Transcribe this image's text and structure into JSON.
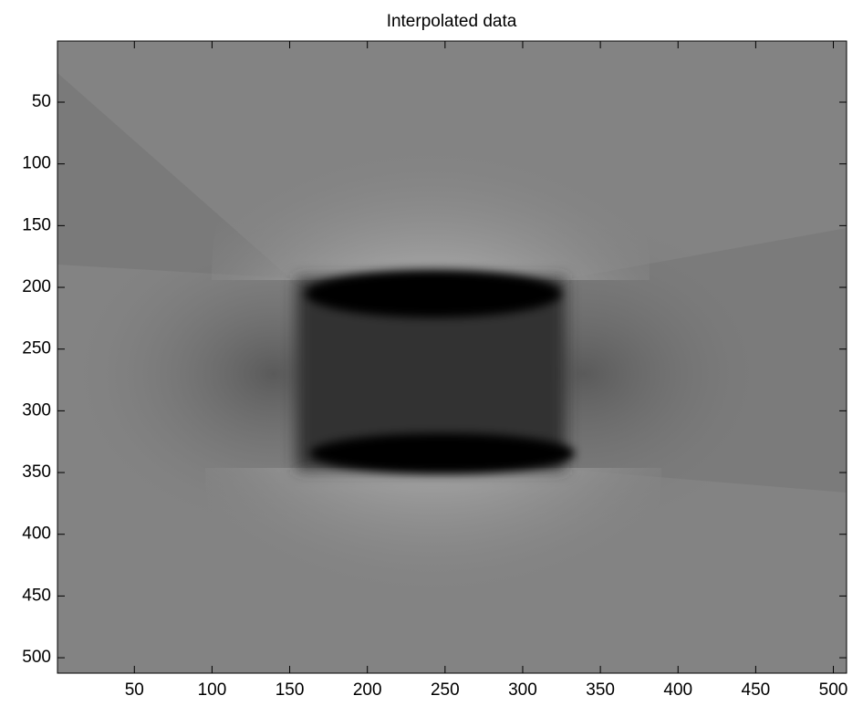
{
  "chart_data": {
    "type": "image",
    "title": "Interpolated data",
    "xlim": [
      0.5,
      508.5
    ],
    "ylim": [
      0.5,
      512.5
    ],
    "y_reversed": true,
    "xticks": [
      50,
      100,
      150,
      200,
      250,
      300,
      350,
      400,
      450,
      500
    ],
    "yticks": [
      50,
      100,
      150,
      200,
      250,
      300,
      350,
      400,
      450,
      500
    ]
  }
}
